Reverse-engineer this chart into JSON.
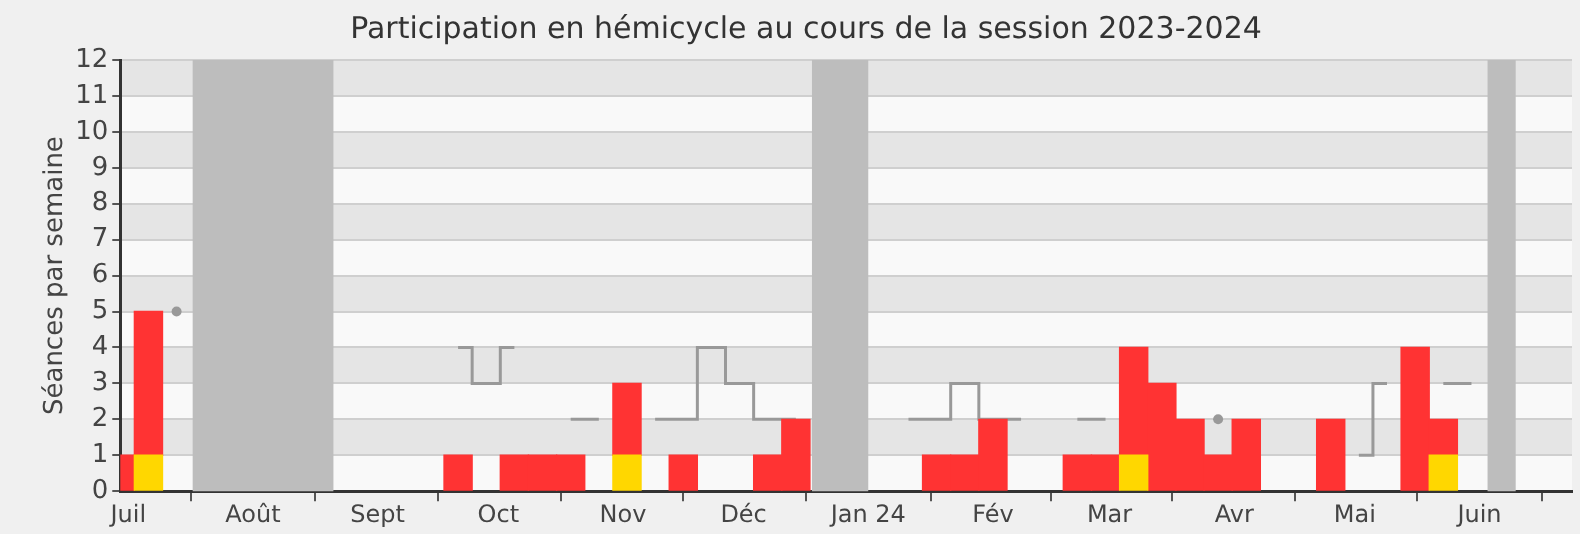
{
  "chart_data": {
    "type": "bar",
    "title": "Participation en hémicycle au cours de la session 2023-2024",
    "ylabel": "Séances par semaine",
    "x": [
      "2023-06-29",
      "2023-07-06",
      "2023-07-13",
      "2023-07-20",
      "2023-07-27",
      "2023-08-03",
      "2023-08-10",
      "2023-08-17",
      "2023-08-24",
      "2023-08-31",
      "2023-09-07",
      "2023-09-14",
      "2023-09-21",
      "2023-09-28",
      "2023-10-05",
      "2023-10-12",
      "2023-10-19",
      "2023-10-26",
      "2023-11-02",
      "2023-11-09",
      "2023-11-16",
      "2023-11-23",
      "2023-11-30",
      "2023-12-07",
      "2023-12-14",
      "2023-12-21",
      "2023-12-28",
      "2024-01-04",
      "2024-01-11",
      "2024-01-18",
      "2024-01-25",
      "2024-02-01",
      "2024-02-08",
      "2024-02-15",
      "2024-02-22",
      "2024-02-29",
      "2024-03-07",
      "2024-03-14",
      "2024-03-21",
      "2024-03-28",
      "2024-04-04",
      "2024-04-11",
      "2024-04-18",
      "2024-04-25",
      "2024-05-02",
      "2024-05-09",
      "2024-05-16",
      "2024-05-23",
      "2024-05-30"
    ],
    "xlim": [
      "2023-06-29",
      "2024-06-24"
    ],
    "xticks": [
      {
        "value": "2023-07-01",
        "label": "Juil"
      },
      {
        "value": "2023-08-01",
        "label": "Août"
      },
      {
        "value": "2023-09-01",
        "label": "Sept"
      },
      {
        "value": "2023-10-01",
        "label": "Oct"
      },
      {
        "value": "2023-11-01",
        "label": "Nov"
      },
      {
        "value": "2023-12-01",
        "label": "Déc"
      },
      {
        "value": "2024-01-01",
        "label": "Jan 24"
      },
      {
        "value": "2024-02-01",
        "label": "Fév"
      },
      {
        "value": "2024-03-01",
        "label": "Mar"
      },
      {
        "value": "2024-04-01",
        "label": "Avr"
      },
      {
        "value": "2024-05-01",
        "label": "Mai"
      },
      {
        "value": "2024-06-01",
        "label": "Juin"
      }
    ],
    "stacked": true,
    "ylim": [
      0,
      12
    ],
    "yticks": [
      0,
      1,
      2,
      3,
      4,
      5,
      6,
      7,
      8,
      9,
      10,
      11,
      12
    ],
    "grid": "y",
    "legend": false,
    "bands": [
      {
        "axis": "x",
        "from": "2023-07-17",
        "to": "2023-08-21",
        "color": "#bdbdbd"
      },
      {
        "axis": "x",
        "from": "2023-12-18",
        "to": "2024-01-01",
        "color": "#bdbdbd"
      },
      {
        "axis": "x",
        "from": "2024-06-03",
        "to": "2024-06-10",
        "color": "#bdbdbd"
      }
    ],
    "series": [
      {
        "type": "step",
        "color": "#999999",
        "values": [
          null,
          null,
          5,
          null,
          null,
          null,
          null,
          null,
          null,
          null,
          null,
          null,
          4,
          3,
          4,
          null,
          2,
          2,
          null,
          2,
          2,
          4,
          3,
          2,
          2,
          null,
          null,
          null,
          2,
          2,
          3,
          2,
          2,
          null,
          2,
          2,
          null,
          null,
          null,
          2,
          null,
          null,
          null,
          null,
          1,
          3,
          null,
          3,
          3
        ]
      },
      {
        "color": "#ffd700",
        "values": [
          null,
          1,
          null,
          null,
          null,
          null,
          null,
          null,
          null,
          null,
          null,
          null,
          null,
          null,
          null,
          null,
          null,
          null,
          1,
          null,
          null,
          null,
          null,
          null,
          null,
          null,
          null,
          null,
          null,
          null,
          null,
          null,
          null,
          null,
          null,
          null,
          1,
          null,
          null,
          null,
          null,
          null,
          null,
          null,
          null,
          null,
          null,
          1,
          null
        ]
      },
      {
        "color": "#ff3333",
        "values": [
          1,
          4,
          null,
          null,
          null,
          null,
          null,
          null,
          null,
          null,
          null,
          null,
          1,
          null,
          1,
          1,
          1,
          null,
          2,
          null,
          1,
          null,
          null,
          1,
          2,
          null,
          null,
          null,
          null,
          1,
          1,
          2,
          null,
          null,
          1,
          1,
          3,
          3,
          2,
          1,
          2,
          null,
          null,
          2,
          null,
          null,
          4,
          1,
          null
        ]
      }
    ]
  }
}
